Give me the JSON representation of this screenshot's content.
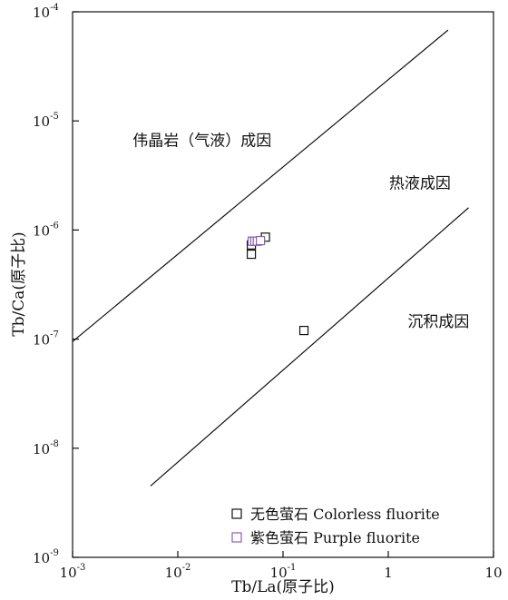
{
  "chart_data": {
    "type": "scatter",
    "title": "",
    "xlabel": "Tb/La(原子比)",
    "ylabel": "Tb/Ca(原子比)",
    "x_scale": "log",
    "y_scale": "log",
    "xlim": [
      0.001,
      10
    ],
    "ylim": [
      1e-09,
      0.0001
    ],
    "grid": false,
    "legend_position": "bottom-right",
    "x_ticks": [
      {
        "value": 0.001,
        "base": "10",
        "exp": "-3"
      },
      {
        "value": 0.01,
        "base": "10",
        "exp": "-2"
      },
      {
        "value": 0.1,
        "base": "10",
        "exp": "-1"
      },
      {
        "value": 1,
        "base": "1",
        "exp": ""
      },
      {
        "value": 10,
        "base": "10",
        "exp": ""
      }
    ],
    "y_ticks": [
      {
        "value": 1e-09,
        "base": "10",
        "exp": "-9"
      },
      {
        "value": 1e-08,
        "base": "10",
        "exp": "-8"
      },
      {
        "value": 1e-07,
        "base": "10",
        "exp": "-7"
      },
      {
        "value": 1e-06,
        "base": "10",
        "exp": "-6"
      },
      {
        "value": 1e-05,
        "base": "10",
        "exp": "-5"
      },
      {
        "value": 0.0001,
        "base": "10",
        "exp": "-4"
      }
    ],
    "boundary_lines": [
      {
        "x": [
          0.001,
          3.7
        ],
        "y": [
          9.5e-08,
          6.8e-05
        ]
      },
      {
        "x": [
          0.0055,
          5.8
        ],
        "y": [
          4.5e-09,
          1.6e-06
        ]
      }
    ],
    "region_labels": [
      {
        "text": "伟晶岩（气液）成因",
        "x": 0.017,
        "y": 5.9e-06
      },
      {
        "text": "热液成因",
        "x": 2.0,
        "y": 2.4e-06
      },
      {
        "text": "沉积成因",
        "x": 3.0,
        "y": 1.3e-07
      }
    ],
    "series": [
      {
        "name": "无色萤石 Colorless fluorite",
        "color": "#111111",
        "x": [
          0.05,
          0.05,
          0.068,
          0.158
        ],
        "y": [
          7.3e-07,
          6e-07,
          8.6e-07,
          1.2e-07
        ]
      },
      {
        "name": "紫色萤石 Purple fluorite",
        "color": "#8a5db8",
        "x": [
          0.051,
          0.054,
          0.057,
          0.061
        ],
        "y": [
          7.9e-07,
          7.9e-07,
          7.9e-07,
          8e-07
        ]
      }
    ]
  }
}
